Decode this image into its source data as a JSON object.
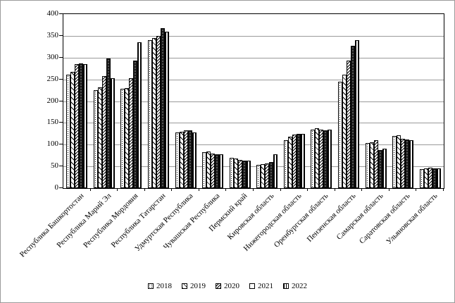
{
  "chart_data": {
    "type": "bar",
    "title": "",
    "xlabel": "",
    "ylabel": "",
    "ylim": [
      0,
      400
    ],
    "ytick_step": 50,
    "grid": true,
    "legend_position": "bottom",
    "categories": [
      "Республика Башкортостан",
      "Республика Марий Эл",
      "Республика Мордовия",
      "Республика Татарстан",
      "Удмуртская Республика",
      "Чувашская Республика",
      "Пермский край",
      "Кировская область",
      "Нижегородская область",
      "Оренбургская область",
      "Пензенская область",
      "Самарская область",
      "Саратовская область",
      "Ульяновская область"
    ],
    "series": [
      {
        "name": "2018",
        "values": [
          260,
          225,
          228,
          340,
          128,
          83,
          70,
          53,
          110,
          135,
          245,
          103,
          120,
          43
        ]
      },
      {
        "name": "2019",
        "values": [
          268,
          232,
          230,
          345,
          130,
          84,
          68,
          55,
          118,
          137,
          260,
          106,
          122,
          45
        ]
      },
      {
        "name": "2020",
        "values": [
          285,
          258,
          253,
          350,
          133,
          80,
          65,
          57,
          123,
          135,
          293,
          110,
          113,
          47
        ]
      },
      {
        "name": "2021",
        "values": [
          287,
          298,
          293,
          368,
          133,
          78,
          63,
          60,
          125,
          133,
          327,
          87,
          112,
          46
        ]
      },
      {
        "name": "2022",
        "values": [
          285,
          253,
          335,
          360,
          128,
          77,
          63,
          78,
          125,
          135,
          340,
          90,
          110,
          46
        ]
      }
    ]
  }
}
